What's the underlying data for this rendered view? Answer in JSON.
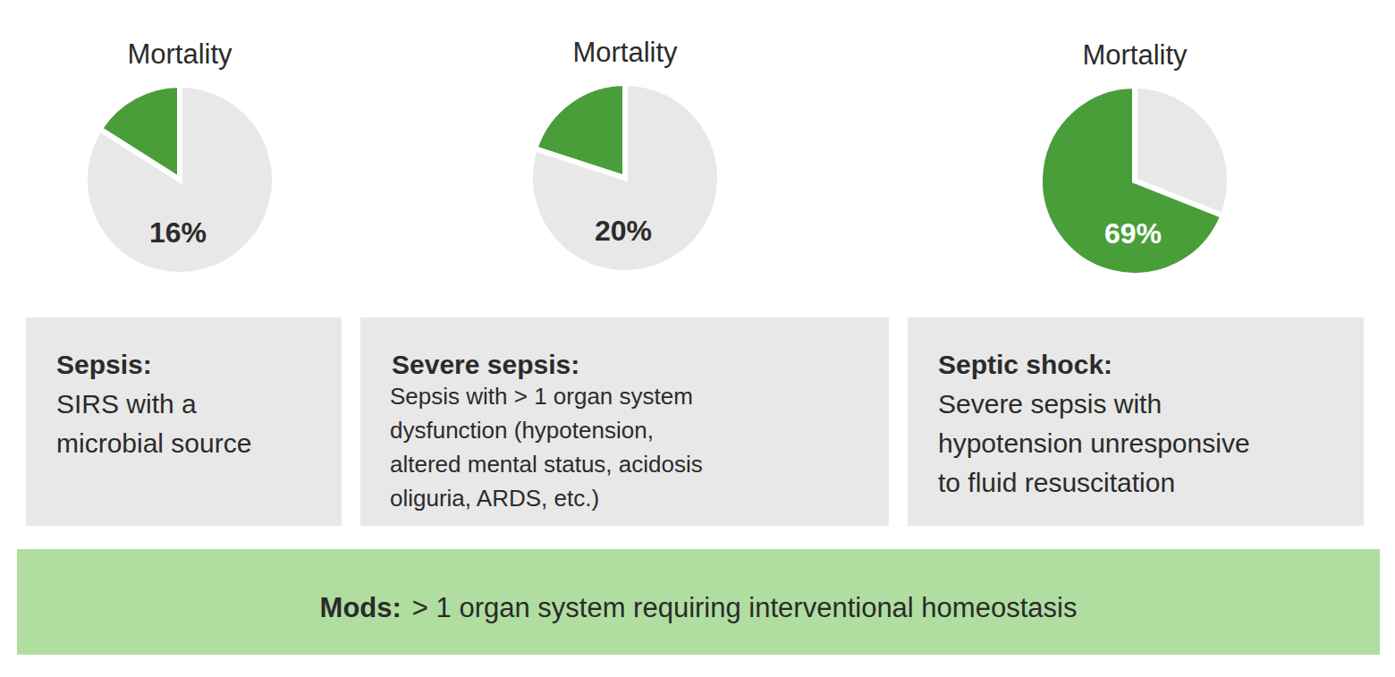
{
  "chart_data": [
    {
      "type": "pie",
      "title": "Mortality",
      "values": [
        16,
        84
      ],
      "colors": [
        "#4a9e3a",
        "#e8e8e8"
      ],
      "value_labels": [
        "16%",
        null
      ],
      "data_labels": true
    },
    {
      "type": "pie",
      "title": "Mortality",
      "values": [
        20,
        80
      ],
      "colors": [
        "#4a9e3a",
        "#e8e8e8"
      ],
      "value_labels": [
        "20%",
        null
      ],
      "data_labels": true
    },
    {
      "type": "pie",
      "title": "Mortality",
      "values": [
        69,
        31
      ],
      "colors": [
        "#4a9e3a",
        "#e8e8e8"
      ],
      "value_labels": [
        "69%",
        null
      ],
      "data_labels": true
    }
  ],
  "boxes": [
    {
      "term": "Sepsis:",
      "lines": [
        "SIRS with a",
        "microbial source"
      ]
    },
    {
      "term": "Severe sepsis:",
      "lines": [
        "Sepsis with > 1 organ system",
        "dysfunction (hypotension,",
        "altered mental status, acidosis",
        "oliguria, ARDS, etc.)"
      ]
    },
    {
      "term": "Septic shock:",
      "lines": [
        "Severe sepsis with",
        "hypotension unresponsive",
        "to fluid resuscitation"
      ]
    }
  ],
  "footer": {
    "term": "Mods:",
    "text": "> 1 organ system requiring interventional homeostasis"
  }
}
